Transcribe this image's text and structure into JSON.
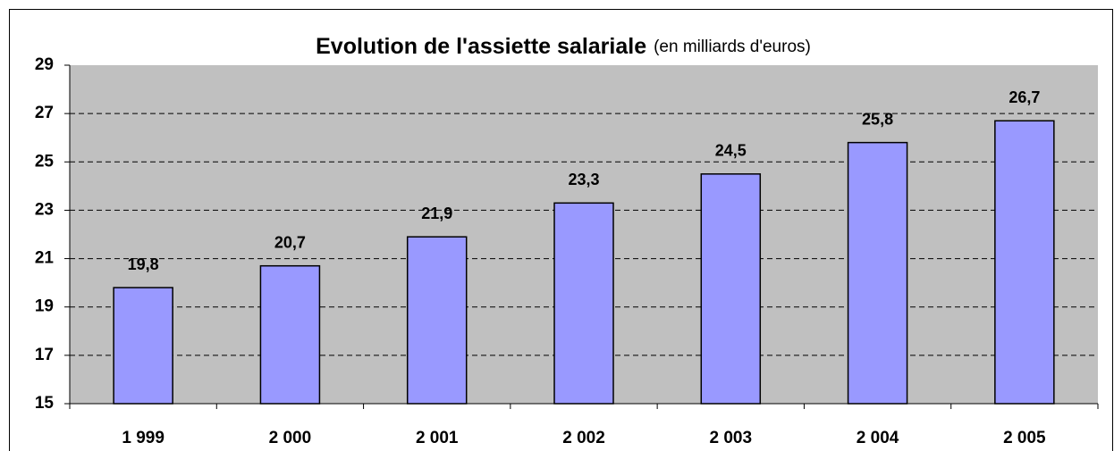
{
  "chart_data": {
    "type": "bar",
    "title": "Evolution de l'assiette salariale",
    "subtitle": "(en milliards d'euros)",
    "categories": [
      "1 999",
      "2 000",
      "2 001",
      "2 002",
      "2 003",
      "2 004",
      "2 005"
    ],
    "values": [
      19.8,
      20.7,
      21.9,
      23.3,
      24.5,
      25.8,
      26.7
    ],
    "value_labels": [
      "19,8",
      "20,7",
      "21,9",
      "23,3",
      "24,5",
      "25,8",
      "26,7"
    ],
    "color": "#9999ff",
    "ylim": [
      15,
      29
    ],
    "yticks": [
      15,
      17,
      19,
      21,
      23,
      25,
      27,
      29
    ],
    "grid": true
  }
}
